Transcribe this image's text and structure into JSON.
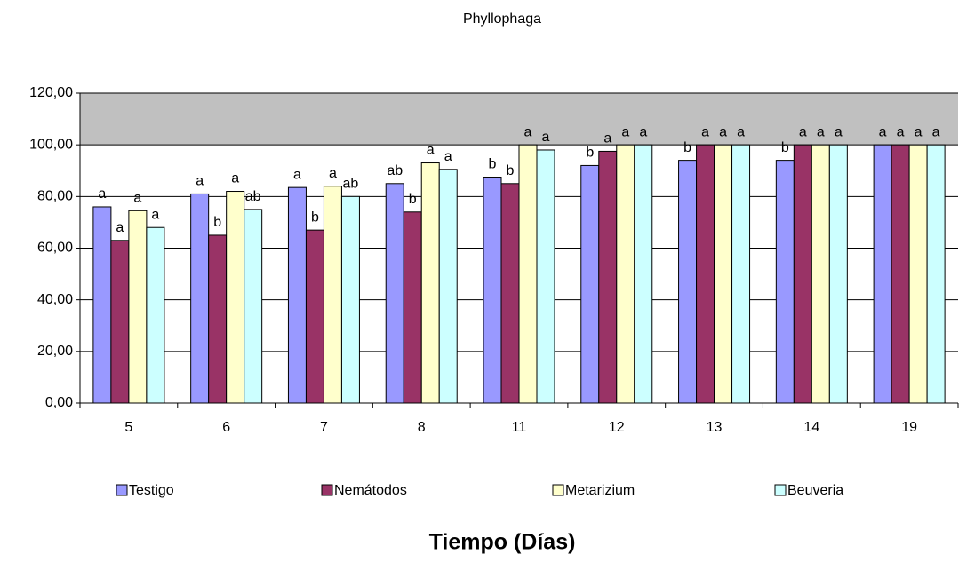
{
  "chart_data": {
    "type": "bar",
    "title": "Phyllophaga",
    "x_label": "Tiempo (Días)",
    "categories": [
      "5",
      "6",
      "7",
      "8",
      "11",
      "12",
      "13",
      "14",
      "19"
    ],
    "series": [
      {
        "name": "Testigo",
        "color": "#9999ff",
        "values": [
          76,
          81,
          83.5,
          85,
          87.5,
          92,
          94,
          94,
          100
        ],
        "labels": [
          "a",
          "a",
          "a",
          "ab",
          "b",
          "b",
          "b",
          "b",
          "a"
        ]
      },
      {
        "name": "Nemátodos",
        "color": "#993366",
        "values": [
          63,
          65,
          67,
          74,
          85,
          97.5,
          100,
          100,
          100
        ],
        "labels": [
          "a",
          "b",
          "b",
          "b",
          "b",
          "a",
          "a",
          "a",
          "a"
        ]
      },
      {
        "name": "Metarizium",
        "color": "#ffffcc",
        "values": [
          74.5,
          82,
          84,
          93,
          100,
          100,
          100,
          100,
          100
        ],
        "labels": [
          "a",
          "a",
          "a",
          "a",
          "a",
          "a",
          "a",
          "a",
          "a"
        ]
      },
      {
        "name": "Beuveria",
        "color": "#ccffff",
        "values": [
          68,
          75,
          80,
          90.5,
          98,
          100,
          100,
          100,
          100
        ],
        "labels": [
          "a",
          "ab",
          "ab",
          "a",
          "a",
          "a",
          "a",
          "a",
          "a"
        ]
      }
    ],
    "ylim": [
      0,
      120
    ],
    "yticks": [
      {
        "value": 0,
        "label": "0,00"
      },
      {
        "value": 20,
        "label": "20,00"
      },
      {
        "value": 40,
        "label": "40,00"
      },
      {
        "value": 60,
        "label": "60,00"
      },
      {
        "value": 80,
        "label": "80,00"
      },
      {
        "value": 100,
        "label": "100,00"
      },
      {
        "value": 120,
        "label": "120,00"
      }
    ],
    "grid": true,
    "legend": "bottom"
  }
}
